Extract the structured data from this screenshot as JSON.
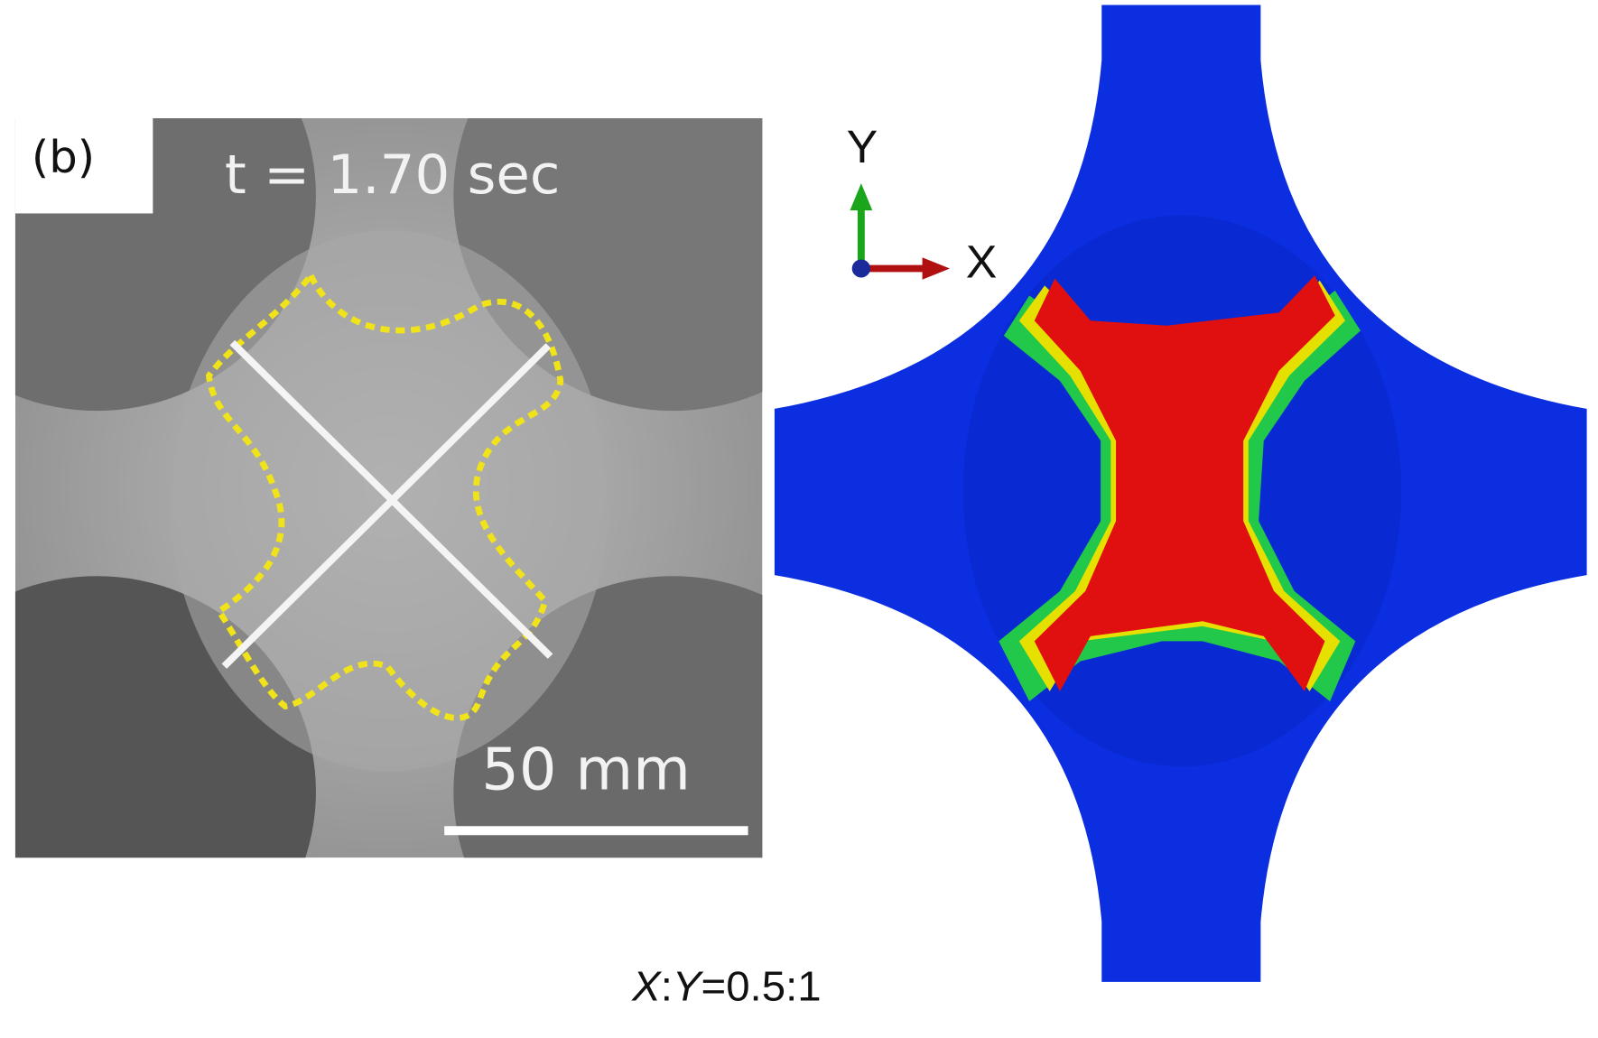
{
  "panel_label": "(b)",
  "photo": {
    "time_label": "t = 1.70 sec",
    "scale_bar_label": "50 mm"
  },
  "simulation": {
    "axis_y": "Y",
    "axis_x": "X"
  },
  "ratio": {
    "x": "X",
    "separator": ":",
    "y": "Y",
    "value": "=0.5:1"
  }
}
